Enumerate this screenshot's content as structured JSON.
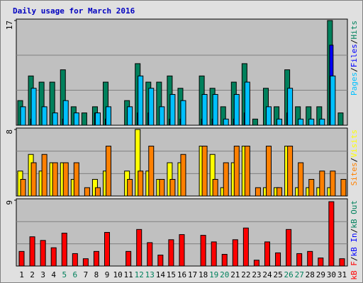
{
  "title": "Daily usage for March 2016",
  "categories": [
    "1",
    "2",
    "3",
    "4",
    "5",
    "6",
    "7",
    "8",
    "9",
    "10",
    "11",
    "12",
    "13",
    "14",
    "15",
    "16",
    "17",
    "18",
    "19",
    "20",
    "21",
    "22",
    "23",
    "24",
    "25",
    "26",
    "27",
    "28",
    "29",
    "30",
    "31"
  ],
  "category_colors": [
    "#000000",
    "#000000",
    "#000000",
    "#000000",
    "#00805c",
    "#00805c",
    "#000000",
    "#000000",
    "#000000",
    "#000000",
    "#000000",
    "#00805c",
    "#00805c",
    "#000000",
    "#000000",
    "#000000",
    "#000000",
    "#000000",
    "#00805c",
    "#00805c",
    "#000000",
    "#000000",
    "#000000",
    "#000000",
    "#000000",
    "#00805c",
    "#00805c",
    "#000000",
    "#000000",
    "#000000",
    "#000000"
  ],
  "legend_separator": "/",
  "chart_data": [
    {
      "type": "bar",
      "ylim": [
        0,
        17
      ],
      "yticks": [
        17
      ],
      "series": [
        {
          "name": "Pages",
          "color": "#00c0ff",
          "values": [
            3,
            6,
            3,
            2,
            4,
            2,
            0,
            2,
            3,
            0,
            3,
            8,
            6,
            3,
            5,
            4,
            0,
            5,
            5,
            1,
            5,
            7,
            0,
            3,
            1,
            6,
            1,
            1,
            1,
            8,
            0
          ]
        },
        {
          "name": "Files",
          "color": "#0000ff",
          "values": [
            0,
            1,
            0,
            0,
            1,
            0,
            0,
            2,
            1,
            0,
            0,
            2,
            2,
            0,
            1,
            1,
            0,
            1,
            1,
            0,
            1,
            2,
            0,
            0,
            0,
            2,
            0,
            0,
            0,
            13,
            0
          ]
        },
        {
          "name": "Hits",
          "color": "#00805c",
          "values": [
            4,
            8,
            7,
            7,
            9,
            3,
            2,
            3,
            7,
            0,
            4,
            10,
            7,
            7,
            8,
            6,
            0,
            8,
            6,
            3,
            7,
            10,
            1,
            6,
            3,
            9,
            3,
            3,
            3,
            17,
            2
          ]
        }
      ]
    },
    {
      "type": "bar",
      "ylim": [
        0,
        8
      ],
      "yticks": [
        8
      ],
      "series": [
        {
          "name": "Sites",
          "color": "#ff8000",
          "values": [
            2,
            4,
            5,
            4,
            4,
            4,
            1,
            1,
            6,
            0,
            2,
            3,
            6,
            2,
            2,
            5,
            0,
            6,
            2,
            4,
            6,
            6,
            1,
            6,
            1,
            6,
            4,
            2,
            3,
            3,
            2
          ]
        },
        {
          "name": "Visits",
          "color": "#ffff00",
          "values": [
            3,
            5,
            3,
            4,
            4,
            2,
            0,
            2,
            3,
            0,
            3,
            8,
            3,
            2,
            4,
            4,
            0,
            6,
            5,
            1,
            4,
            6,
            0,
            1,
            1,
            6,
            1,
            1,
            1,
            1,
            0
          ]
        }
      ]
    },
    {
      "type": "bar",
      "ylim": [
        0,
        9
      ],
      "yticks": [
        9
      ],
      "series": [
        {
          "name": "kB F",
          "color": "#ff0000",
          "values": [
            2,
            4,
            3.5,
            2.5,
            4.5,
            1.7,
            1,
            2,
            4.6,
            0,
            2,
            5,
            3.2,
            1.5,
            3.6,
            4.3,
            0,
            4.2,
            3.3,
            1.6,
            3.6,
            5.2,
            0.8,
            3.3,
            1.8,
            5,
            1.7,
            2,
            1.1,
            8.8,
            1
          ]
        },
        {
          "name": "kB In",
          "color": "#0000ff",
          "values": [
            0,
            0,
            0,
            0,
            0,
            0,
            0,
            0,
            0,
            0,
            0,
            0,
            0,
            0,
            0,
            0,
            0,
            0,
            0,
            0,
            0,
            0,
            0,
            0,
            0,
            0,
            0,
            0,
            0,
            0,
            0
          ]
        },
        {
          "name": "kB Out",
          "color": "#00805c",
          "values": [
            0,
            0,
            0,
            0,
            0,
            0,
            0,
            0,
            0,
            0,
            0,
            0,
            0,
            0,
            0,
            0,
            0,
            0,
            0,
            0,
            0,
            0,
            0,
            0,
            0,
            0,
            0,
            0,
            0,
            0,
            0
          ]
        }
      ]
    }
  ]
}
